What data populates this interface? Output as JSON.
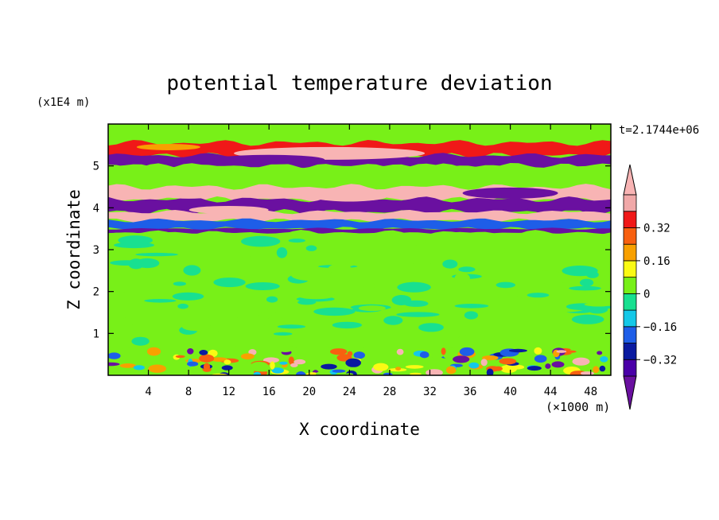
{
  "chart_data": {
    "type": "heatmap",
    "title": "potential temperature deviation",
    "xlabel": "X coordinate",
    "ylabel": "Z coordinate",
    "x_unit": "(×1000 m)",
    "y_unit": "(x1E4 m)",
    "time_label": "t=2.1744e+06",
    "xlim": [
      0,
      50
    ],
    "ylim": [
      0,
      6
    ],
    "x_ticks": [
      "4",
      "8",
      "12",
      "16",
      "20",
      "24",
      "28",
      "32",
      "36",
      "40",
      "44",
      "48"
    ],
    "y_ticks": [
      "1",
      "2",
      "3",
      "4",
      "5"
    ],
    "colorbar": {
      "labels": [
        "0.32",
        "0.16",
        "0",
        "−0.16",
        "−0.32"
      ],
      "levels": [
        -0.4,
        -0.32,
        -0.24,
        -0.16,
        -0.08,
        0,
        0.08,
        0.16,
        0.24,
        0.32,
        0.4
      ],
      "colors": [
        "#4a00a8",
        "#0a1aa0",
        "#1e5ee8",
        "#14c8e8",
        "#18e090",
        "#78f018",
        "#fafa14",
        "#f8a000",
        "#f86010",
        "#f01818",
        "#f0a8a8"
      ],
      "over_color": "#f8b4b4",
      "under_color": "#6a10a0"
    },
    "bands": [
      {
        "z": [
          5.55,
          5.9
        ],
        "value": 0.02
      },
      {
        "z": [
          5.25,
          5.55
        ],
        "value": 0.35
      },
      {
        "z": [
          5.0,
          5.25
        ],
        "value": -0.45
      },
      {
        "z": [
          4.5,
          5.0
        ],
        "value": 0.02
      },
      {
        "z": [
          4.2,
          4.5
        ],
        "value": 0.45
      },
      {
        "z": [
          3.9,
          4.2
        ],
        "value": -0.45
      },
      {
        "z": [
          3.7,
          3.9
        ],
        "value": 0.45
      },
      {
        "z": [
          3.5,
          3.7
        ],
        "value": -0.2
      },
      {
        "z": [
          3.4,
          3.5
        ],
        "value": -0.45
      },
      {
        "z": [
          0.65,
          3.4
        ],
        "value": 0.02
      },
      {
        "z": [
          0,
          0.65
        ],
        "value": 0.0
      }
    ]
  }
}
